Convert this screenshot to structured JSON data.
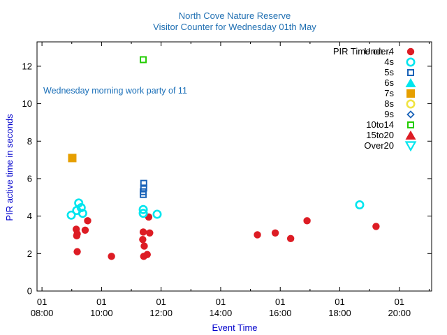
{
  "chart_data": {
    "type": "scatter",
    "title": "North Cove Nature Reserve",
    "subtitle": "Visitor Counter for Wednesday 01th May",
    "xlabel": "Event Time",
    "ylabel": "PIR active time in seconds",
    "xlim": [
      "07:50",
      "21:05"
    ],
    "ylim": [
      0,
      13.3
    ],
    "x_ticks": [
      {
        "value": "08:00",
        "label_top": "01",
        "label_bottom": "08:00"
      },
      {
        "value": "10:00",
        "label_top": "01",
        "label_bottom": "10:00"
      },
      {
        "value": "12:00",
        "label_top": "01",
        "label_bottom": "12:00"
      },
      {
        "value": "14:00",
        "label_top": "01",
        "label_bottom": "14:00"
      },
      {
        "value": "16:00",
        "label_top": "01",
        "label_bottom": "16:00"
      },
      {
        "value": "18:00",
        "label_top": "01",
        "label_bottom": "18:00"
      },
      {
        "value": "20:00",
        "label_top": "01",
        "label_bottom": "20:00"
      }
    ],
    "y_ticks": [
      0,
      2,
      4,
      6,
      8,
      10,
      12
    ],
    "grid": false,
    "legend_position": "top-right",
    "legend_title": "PIR Time on ..",
    "annotations": [
      {
        "text": "Wednesday morning work party of 11",
        "x": "08:08",
        "y": 10.9
      }
    ],
    "series": [
      {
        "name": "Under4",
        "marker": "filled-circle",
        "color": "#dd1c24",
        "points": [
          {
            "x": "09:09",
            "y": 3.3
          },
          {
            "x": "09:11",
            "y": 3.05
          },
          {
            "x": "09:10",
            "y": 2.95
          },
          {
            "x": "09:11",
            "y": 2.1
          },
          {
            "x": "09:27",
            "y": 3.25
          },
          {
            "x": "09:32",
            "y": 3.75
          },
          {
            "x": "10:20",
            "y": 1.85
          },
          {
            "x": "11:24",
            "y": 3.15
          },
          {
            "x": "11:23",
            "y": 2.75
          },
          {
            "x": "11:26",
            "y": 2.4
          },
          {
            "x": "11:25",
            "y": 1.85
          },
          {
            "x": "11:32",
            "y": 1.95
          },
          {
            "x": "11:35",
            "y": 3.95
          },
          {
            "x": "11:37",
            "y": 3.1
          },
          {
            "x": "15:14",
            "y": 3.0
          },
          {
            "x": "15:50",
            "y": 3.1
          },
          {
            "x": "16:21",
            "y": 2.8
          },
          {
            "x": "16:54",
            "y": 3.75
          },
          {
            "x": "19:13",
            "y": 3.45
          }
        ]
      },
      {
        "name": "4s",
        "marker": "open-circle",
        "color": "#00e5ee",
        "points": [
          {
            "x": "08:59",
            "y": 4.05
          },
          {
            "x": "09:10",
            "y": 4.3
          },
          {
            "x": "09:14",
            "y": 4.7
          },
          {
            "x": "09:19",
            "y": 4.45
          },
          {
            "x": "09:22",
            "y": 4.15
          },
          {
            "x": "11:24",
            "y": 4.35
          },
          {
            "x": "11:24",
            "y": 4.15
          },
          {
            "x": "11:52",
            "y": 4.1
          },
          {
            "x": "18:40",
            "y": 4.6
          }
        ]
      },
      {
        "name": "5s",
        "marker": "open-square",
        "color": "#1a63b8",
        "points": [
          {
            "x": "11:25",
            "y": 5.75
          },
          {
            "x": "11:25",
            "y": 5.5
          },
          {
            "x": "11:24",
            "y": 5.3
          },
          {
            "x": "11:24",
            "y": 5.15
          }
        ]
      },
      {
        "name": "6s",
        "marker": "filled-triangle",
        "color": "#00e5ee",
        "points": []
      },
      {
        "name": "7s",
        "marker": "filled-square",
        "color": "#e69f00",
        "points": [
          {
            "x": "09:01",
            "y": 7.1
          }
        ]
      },
      {
        "name": "8s",
        "marker": "open-circle",
        "color": "#f0e442",
        "points": []
      },
      {
        "name": "9s",
        "marker": "open-diamond",
        "color": "#1a63b8",
        "points": []
      },
      {
        "name": "10to14",
        "marker": "open-square",
        "color": "#22cc00",
        "points": [
          {
            "x": "11:24",
            "y": 12.35
          }
        ]
      },
      {
        "name": "15to20",
        "marker": "filled-triangle",
        "color": "#dd1c24",
        "points": []
      },
      {
        "name": "Over20",
        "marker": "open-triangle-down",
        "color": "#00e5ee",
        "points": []
      }
    ]
  }
}
